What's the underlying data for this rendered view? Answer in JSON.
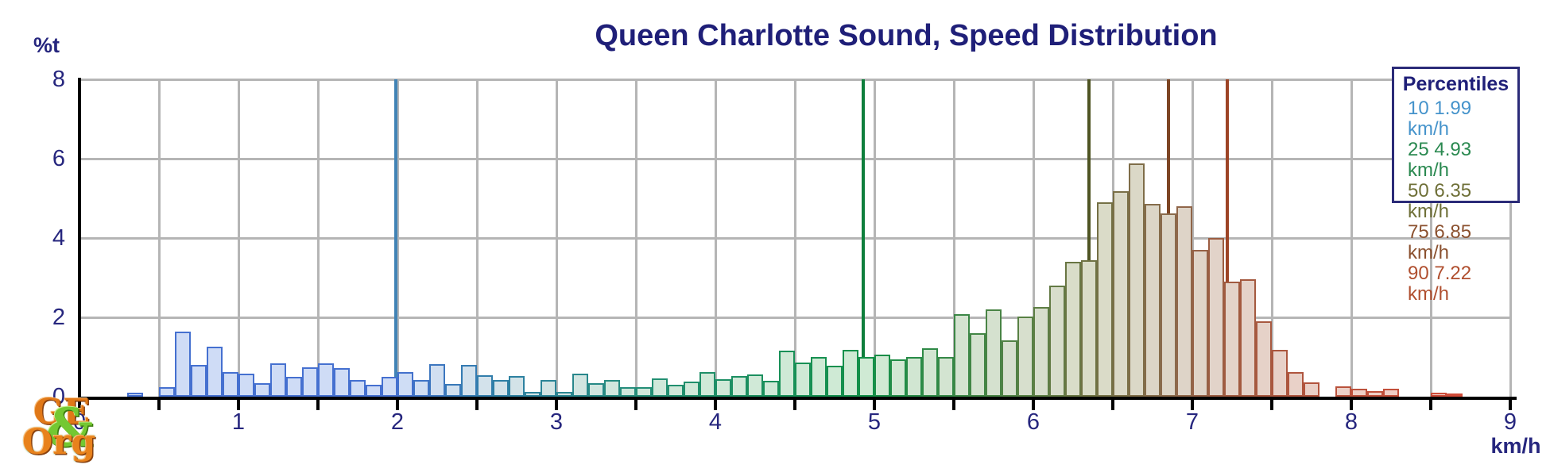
{
  "title": "Queen Charlotte Sound, Speed Distribution",
  "y_axis_label": "%t",
  "x_axis_unit": "km/h",
  "colors": {
    "title_text": "#1f1f78",
    "tick_label_text": "#26267e",
    "gridline": "#b5b5b5",
    "axis": "#000000",
    "background": "#ffffff",
    "legend_border": "#2b2b78"
  },
  "legend": {
    "title": "Percentiles",
    "rows": [
      {
        "percentile": "10",
        "text": "10 1.99 km/h",
        "color": "#4593cb"
      },
      {
        "percentile": "25",
        "text": "25 4.93 km/h",
        "color": "#2a8950"
      },
      {
        "percentile": "50",
        "text": "50 6.35 km/h",
        "color": "#6f7038"
      },
      {
        "percentile": "75",
        "text": "75 6.85 km/h",
        "color": "#8b512f"
      },
      {
        "percentile": "90",
        "text": "90 7.22 km/h",
        "color": "#b04f2f"
      }
    ]
  },
  "logo": {
    "line1": "GE",
    "amp": "&",
    "line2": "Org"
  },
  "chart_data": {
    "type": "bar",
    "title": "Queen Charlotte Sound, Speed Distribution",
    "xlabel": "km/h",
    "ylabel": "%t",
    "xlim": [
      0,
      9
    ],
    "ylim": [
      0,
      8
    ],
    "x_tick_step": 1,
    "x_grid_step": 0.5,
    "y_ticks": [
      0,
      2,
      4,
      6,
      8
    ],
    "x_ticks": [
      0,
      1,
      2,
      3,
      4,
      5,
      6,
      7,
      8,
      9
    ],
    "grid": true,
    "legend_position": "top-right",
    "bin_width": 0.1,
    "bins": [
      [
        0.3,
        0.1
      ],
      [
        0.5,
        0.25
      ],
      [
        0.6,
        1.65
      ],
      [
        0.7,
        0.8
      ],
      [
        0.8,
        1.27
      ],
      [
        0.9,
        0.63
      ],
      [
        1.0,
        0.58
      ],
      [
        1.1,
        0.35
      ],
      [
        1.2,
        0.84
      ],
      [
        1.3,
        0.5
      ],
      [
        1.4,
        0.75
      ],
      [
        1.5,
        0.85
      ],
      [
        1.6,
        0.73
      ],
      [
        1.7,
        0.42
      ],
      [
        1.8,
        0.3
      ],
      [
        1.9,
        0.51
      ],
      [
        2.0,
        0.63
      ],
      [
        2.1,
        0.42
      ],
      [
        2.2,
        0.82
      ],
      [
        2.3,
        0.33
      ],
      [
        2.4,
        0.8
      ],
      [
        2.5,
        0.55
      ],
      [
        2.6,
        0.42
      ],
      [
        2.7,
        0.53
      ],
      [
        2.8,
        0.13
      ],
      [
        2.9,
        0.42
      ],
      [
        3.0,
        0.13
      ],
      [
        3.1,
        0.58
      ],
      [
        3.2,
        0.35
      ],
      [
        3.3,
        0.42
      ],
      [
        3.4,
        0.25
      ],
      [
        3.5,
        0.25
      ],
      [
        3.6,
        0.47
      ],
      [
        3.7,
        0.31
      ],
      [
        3.8,
        0.38
      ],
      [
        3.9,
        0.63
      ],
      [
        4.0,
        0.45
      ],
      [
        4.1,
        0.53
      ],
      [
        4.2,
        0.57
      ],
      [
        4.3,
        0.4
      ],
      [
        4.4,
        1.17
      ],
      [
        4.5,
        0.87
      ],
      [
        4.6,
        1.01
      ],
      [
        4.7,
        0.79
      ],
      [
        4.8,
        1.19
      ],
      [
        4.9,
        1.01
      ],
      [
        5.0,
        1.07
      ],
      [
        5.1,
        0.95
      ],
      [
        5.2,
        1.01
      ],
      [
        5.3,
        1.23
      ],
      [
        5.4,
        1.01
      ],
      [
        5.5,
        2.09
      ],
      [
        5.6,
        1.6
      ],
      [
        5.7,
        2.21
      ],
      [
        5.8,
        1.43
      ],
      [
        5.9,
        2.03
      ],
      [
        6.0,
        2.26
      ],
      [
        6.1,
        2.8
      ],
      [
        6.2,
        3.4
      ],
      [
        6.3,
        3.45
      ],
      [
        6.4,
        4.9
      ],
      [
        6.5,
        5.18
      ],
      [
        6.6,
        5.89
      ],
      [
        6.7,
        4.87
      ],
      [
        6.8,
        4.63
      ],
      [
        6.9,
        4.81
      ],
      [
        7.0,
        3.71
      ],
      [
        7.1,
        4.0
      ],
      [
        7.2,
        2.9
      ],
      [
        7.3,
        2.97
      ],
      [
        7.4,
        1.9
      ],
      [
        7.5,
        1.18
      ],
      [
        7.6,
        0.63
      ],
      [
        7.7,
        0.37
      ],
      [
        7.9,
        0.27
      ],
      [
        8.0,
        0.21
      ],
      [
        8.1,
        0.14
      ],
      [
        8.2,
        0.2
      ],
      [
        8.5,
        0.1
      ],
      [
        8.6,
        0.08
      ]
    ],
    "percentile_lines": [
      {
        "percentile": 10,
        "value": 1.99,
        "color": "#4183b5"
      },
      {
        "percentile": 25,
        "value": 4.93,
        "color": "#0e7f3c"
      },
      {
        "percentile": 50,
        "value": 6.35,
        "color": "#4e5422"
      },
      {
        "percentile": 75,
        "value": 6.85,
        "color": "#7d4524"
      },
      {
        "percentile": 90,
        "value": 7.22,
        "color": "#9d4426"
      }
    ],
    "bar_color_stops": [
      {
        "v": 1.99,
        "border": "#4570d0",
        "fill": "#cfdcf6"
      },
      {
        "v": 2.6,
        "border": "#2f7ea8",
        "fill": "#d3e2ea"
      },
      {
        "v": 3.6,
        "border": "#238f74",
        "fill": "#d0e8da"
      },
      {
        "v": 4.93,
        "border": "#129048",
        "fill": "#cfead4"
      },
      {
        "v": 6.0,
        "border": "#5a8044",
        "fill": "#d7decd"
      },
      {
        "v": 6.35,
        "border": "#6f7243",
        "fill": "#dadcc8"
      },
      {
        "v": 6.85,
        "border": "#8a6a4c",
        "fill": "#dcd5c7"
      },
      {
        "v": 7.22,
        "border": "#a05a40",
        "fill": "#e4d3c9"
      },
      {
        "v": 8.7,
        "border": "#d24a38",
        "fill": "#f4ccc4"
      }
    ]
  }
}
